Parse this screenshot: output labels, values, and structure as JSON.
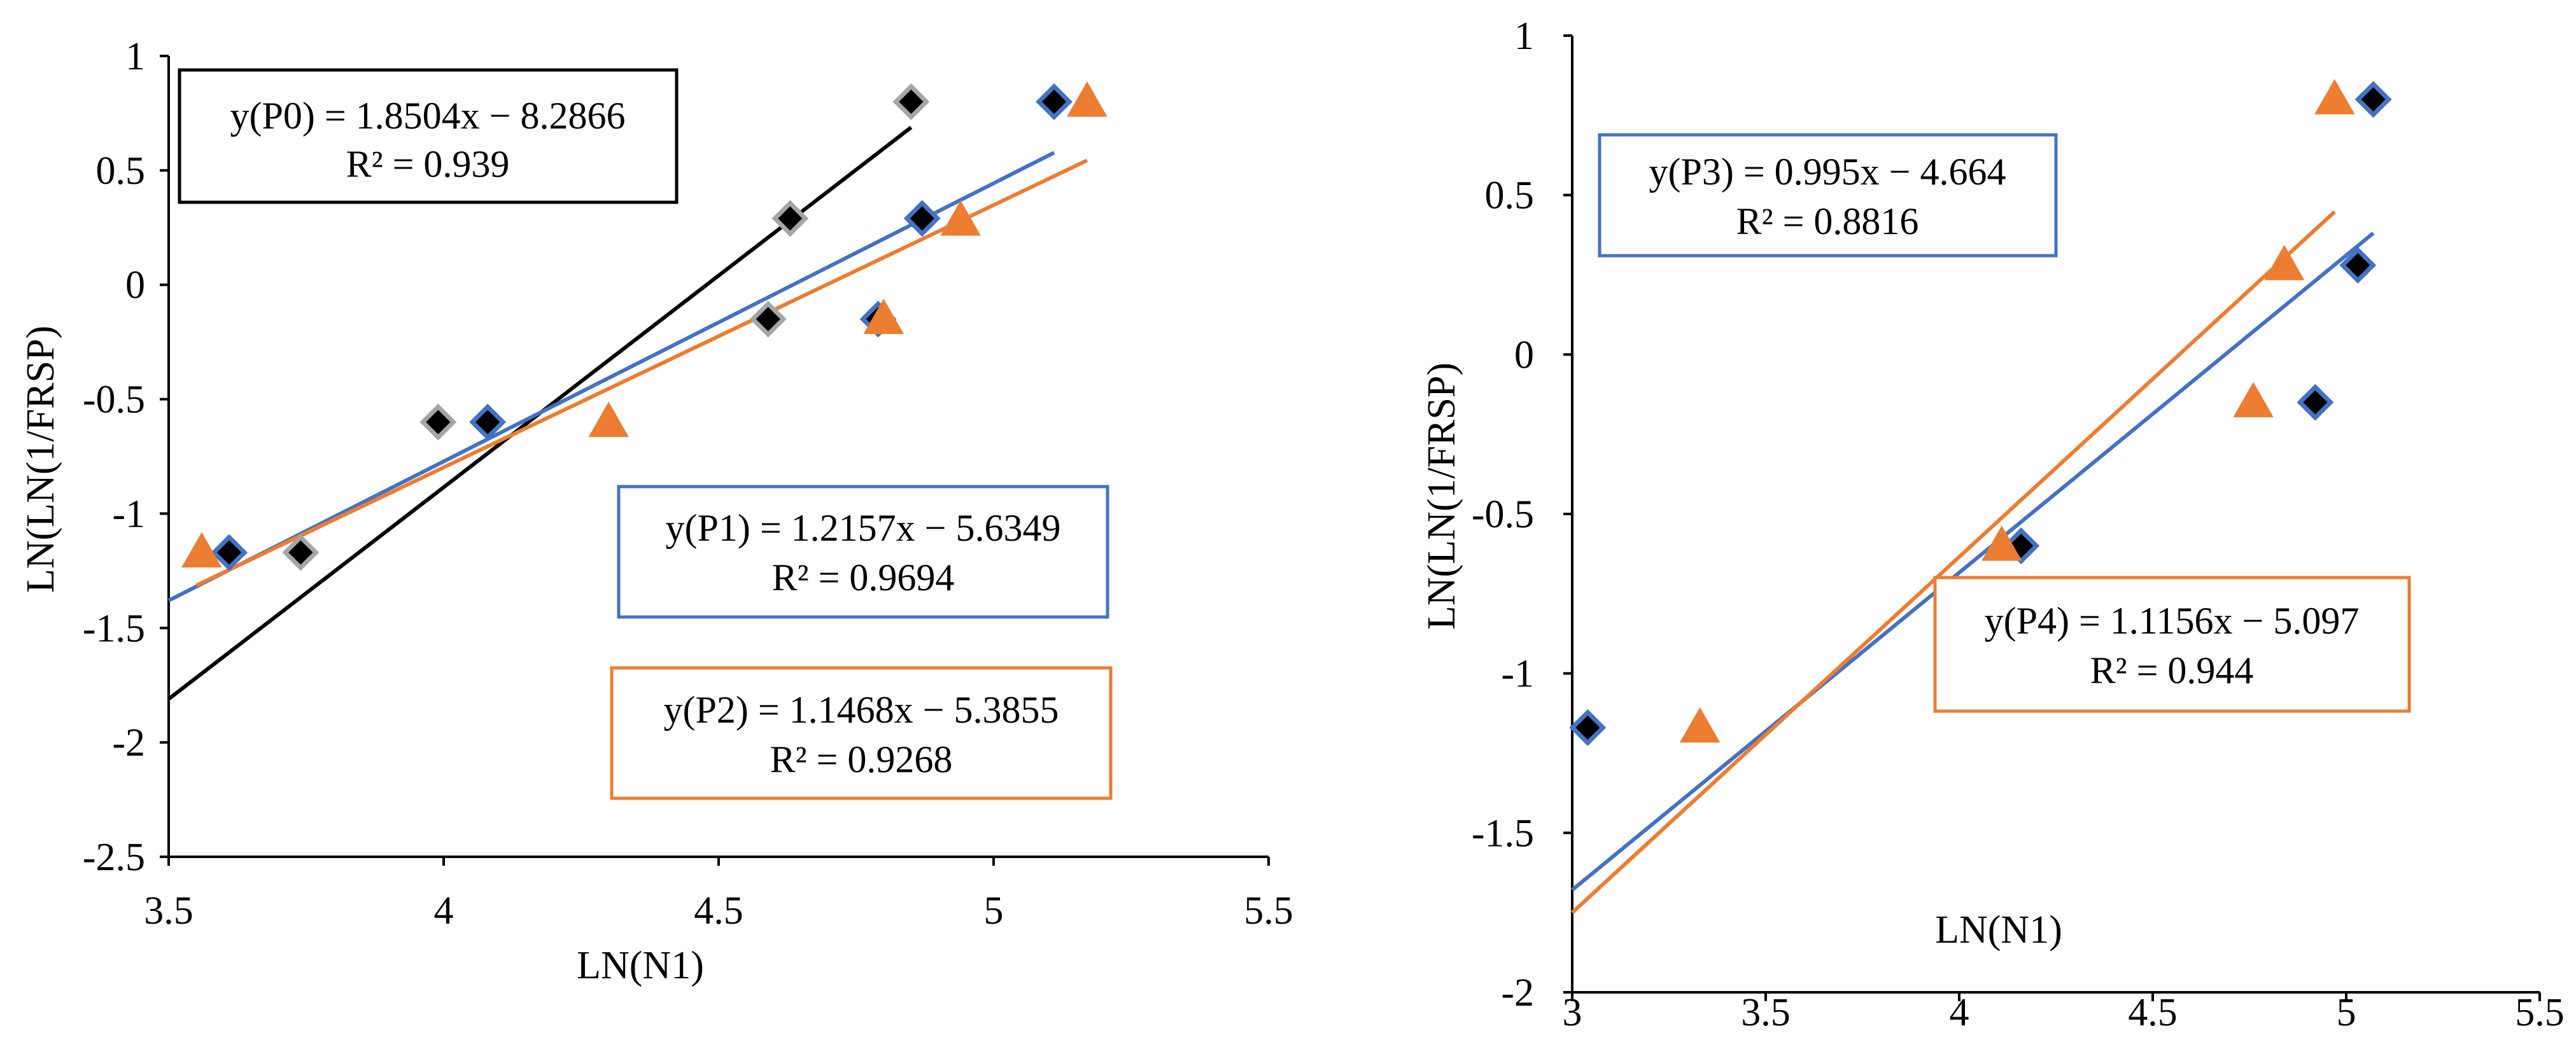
{
  "colors": {
    "p0": "#000000",
    "p1": "#4472c4",
    "p2": "#ed7d31",
    "p0_marker": "#000000",
    "p0_marker_edge": "#a5a5a5",
    "p1_marker": "#000000",
    "p1_marker_edge": "#4472c4",
    "axis": "#000000"
  },
  "chart_data": [
    {
      "type": "scatter",
      "title": "",
      "xlabel": "LN(N1)",
      "ylabel": "LN(LN(1/FRSP)",
      "xlim": [
        3.5,
        5.5
      ],
      "ylim": [
        -2.5,
        1
      ],
      "x_ticks": [
        "3.5",
        "4",
        "4.5",
        "5",
        "5.5"
      ],
      "y_ticks": [
        "1",
        "0.5",
        "0",
        "-0.5",
        "-1",
        "-1.5",
        "-2",
        "-2.5"
      ],
      "grid": false,
      "series": [
        {
          "name": "P0",
          "marker": "diamond",
          "color_key": "p0_marker",
          "edge_key": "p0_marker_edge",
          "points": [
            {
              "x": 3.74,
              "y": -1.17
            },
            {
              "x": 3.99,
              "y": -0.6
            },
            {
              "x": 4.59,
              "y": -0.15
            },
            {
              "x": 4.63,
              "y": 0.29
            },
            {
              "x": 4.85,
              "y": 0.8
            }
          ]
        },
        {
          "name": "P1",
          "marker": "diamond",
          "color_key": "p1_marker",
          "edge_key": "p1_marker_edge",
          "points": [
            {
              "x": 3.61,
              "y": -1.17
            },
            {
              "x": 4.08,
              "y": -0.6
            },
            {
              "x": 4.79,
              "y": -0.15
            },
            {
              "x": 4.87,
              "y": 0.29
            },
            {
              "x": 5.11,
              "y": 0.8
            }
          ]
        },
        {
          "name": "P2",
          "marker": "triangle",
          "color_key": "p2",
          "edge_key": "p2",
          "points": [
            {
              "x": 3.56,
              "y": -1.17
            },
            {
              "x": 4.3,
              "y": -0.6
            },
            {
              "x": 4.8,
              "y": -0.15
            },
            {
              "x": 4.94,
              "y": 0.28
            },
            {
              "x": 5.17,
              "y": 0.8
            }
          ]
        }
      ],
      "trendlines": [
        {
          "series": "P0",
          "slope": 1.8504,
          "intercept": -8.2866,
          "x_range": [
            3.5,
            4.85
          ],
          "color_key": "p0",
          "equation": "y(P0) = 1.8504x  −  8.2866",
          "r2": "R² = 0.939"
        },
        {
          "series": "P1",
          "slope": 1.2157,
          "intercept": -5.6349,
          "x_range": [
            3.5,
            5.11
          ],
          "color_key": "p1",
          "equation": "y(P1) = 1.2157x  − 5.6349",
          "r2": "R² = 0.9694"
        },
        {
          "series": "P2",
          "slope": 1.1468,
          "intercept": -5.3855,
          "x_range": [
            3.55,
            5.17
          ],
          "color_key": "p2",
          "equation": "y(P2) = 1.1468x  −  5.3855",
          "r2": "R² = 0.9268"
        }
      ]
    },
    {
      "type": "scatter",
      "title": "",
      "xlabel": "LN(N1)",
      "ylabel": "LN(LN(1/FRSP)",
      "xlim": [
        3,
        5.5
      ],
      "ylim": [
        -2,
        1
      ],
      "x_ticks": [
        "3",
        "3.5",
        "4",
        "4.5",
        "5",
        "5.5"
      ],
      "y_ticks": [
        "1",
        "0.5",
        "0",
        "-0.5",
        "-1",
        "-1.5",
        "-2"
      ],
      "grid": false,
      "series": [
        {
          "name": "P3",
          "marker": "diamond",
          "color_key": "p1_marker",
          "edge_key": "p1_marker_edge",
          "points": [
            {
              "x": 3.04,
              "y": -1.17
            },
            {
              "x": 4.16,
              "y": -0.6
            },
            {
              "x": 4.92,
              "y": -0.15
            },
            {
              "x": 5.03,
              "y": 0.28
            },
            {
              "x": 5.07,
              "y": 0.8
            }
          ]
        },
        {
          "name": "P4",
          "marker": "triangle",
          "color_key": "p2",
          "edge_key": "p2",
          "points": [
            {
              "x": 3.33,
              "y": -1.17
            },
            {
              "x": 4.11,
              "y": -0.6
            },
            {
              "x": 4.76,
              "y": -0.15
            },
            {
              "x": 4.84,
              "y": 0.28
            },
            {
              "x": 4.97,
              "y": 0.8
            }
          ]
        }
      ],
      "trendlines": [
        {
          "series": "P3",
          "slope": 0.995,
          "intercept": -4.664,
          "x_range": [
            3.0,
            5.07
          ],
          "color_key": "p1",
          "equation": "y(P3) = 0.995x  −  4.664",
          "r2": "R² = 0.8816"
        },
        {
          "series": "P4",
          "slope": 1.1156,
          "intercept": -5.097,
          "x_range": [
            3.0,
            4.97
          ],
          "color_key": "p2",
          "equation": "y(P4) = 1.1156x  −  5.097",
          "r2": "R² = 0.944"
        }
      ]
    }
  ]
}
